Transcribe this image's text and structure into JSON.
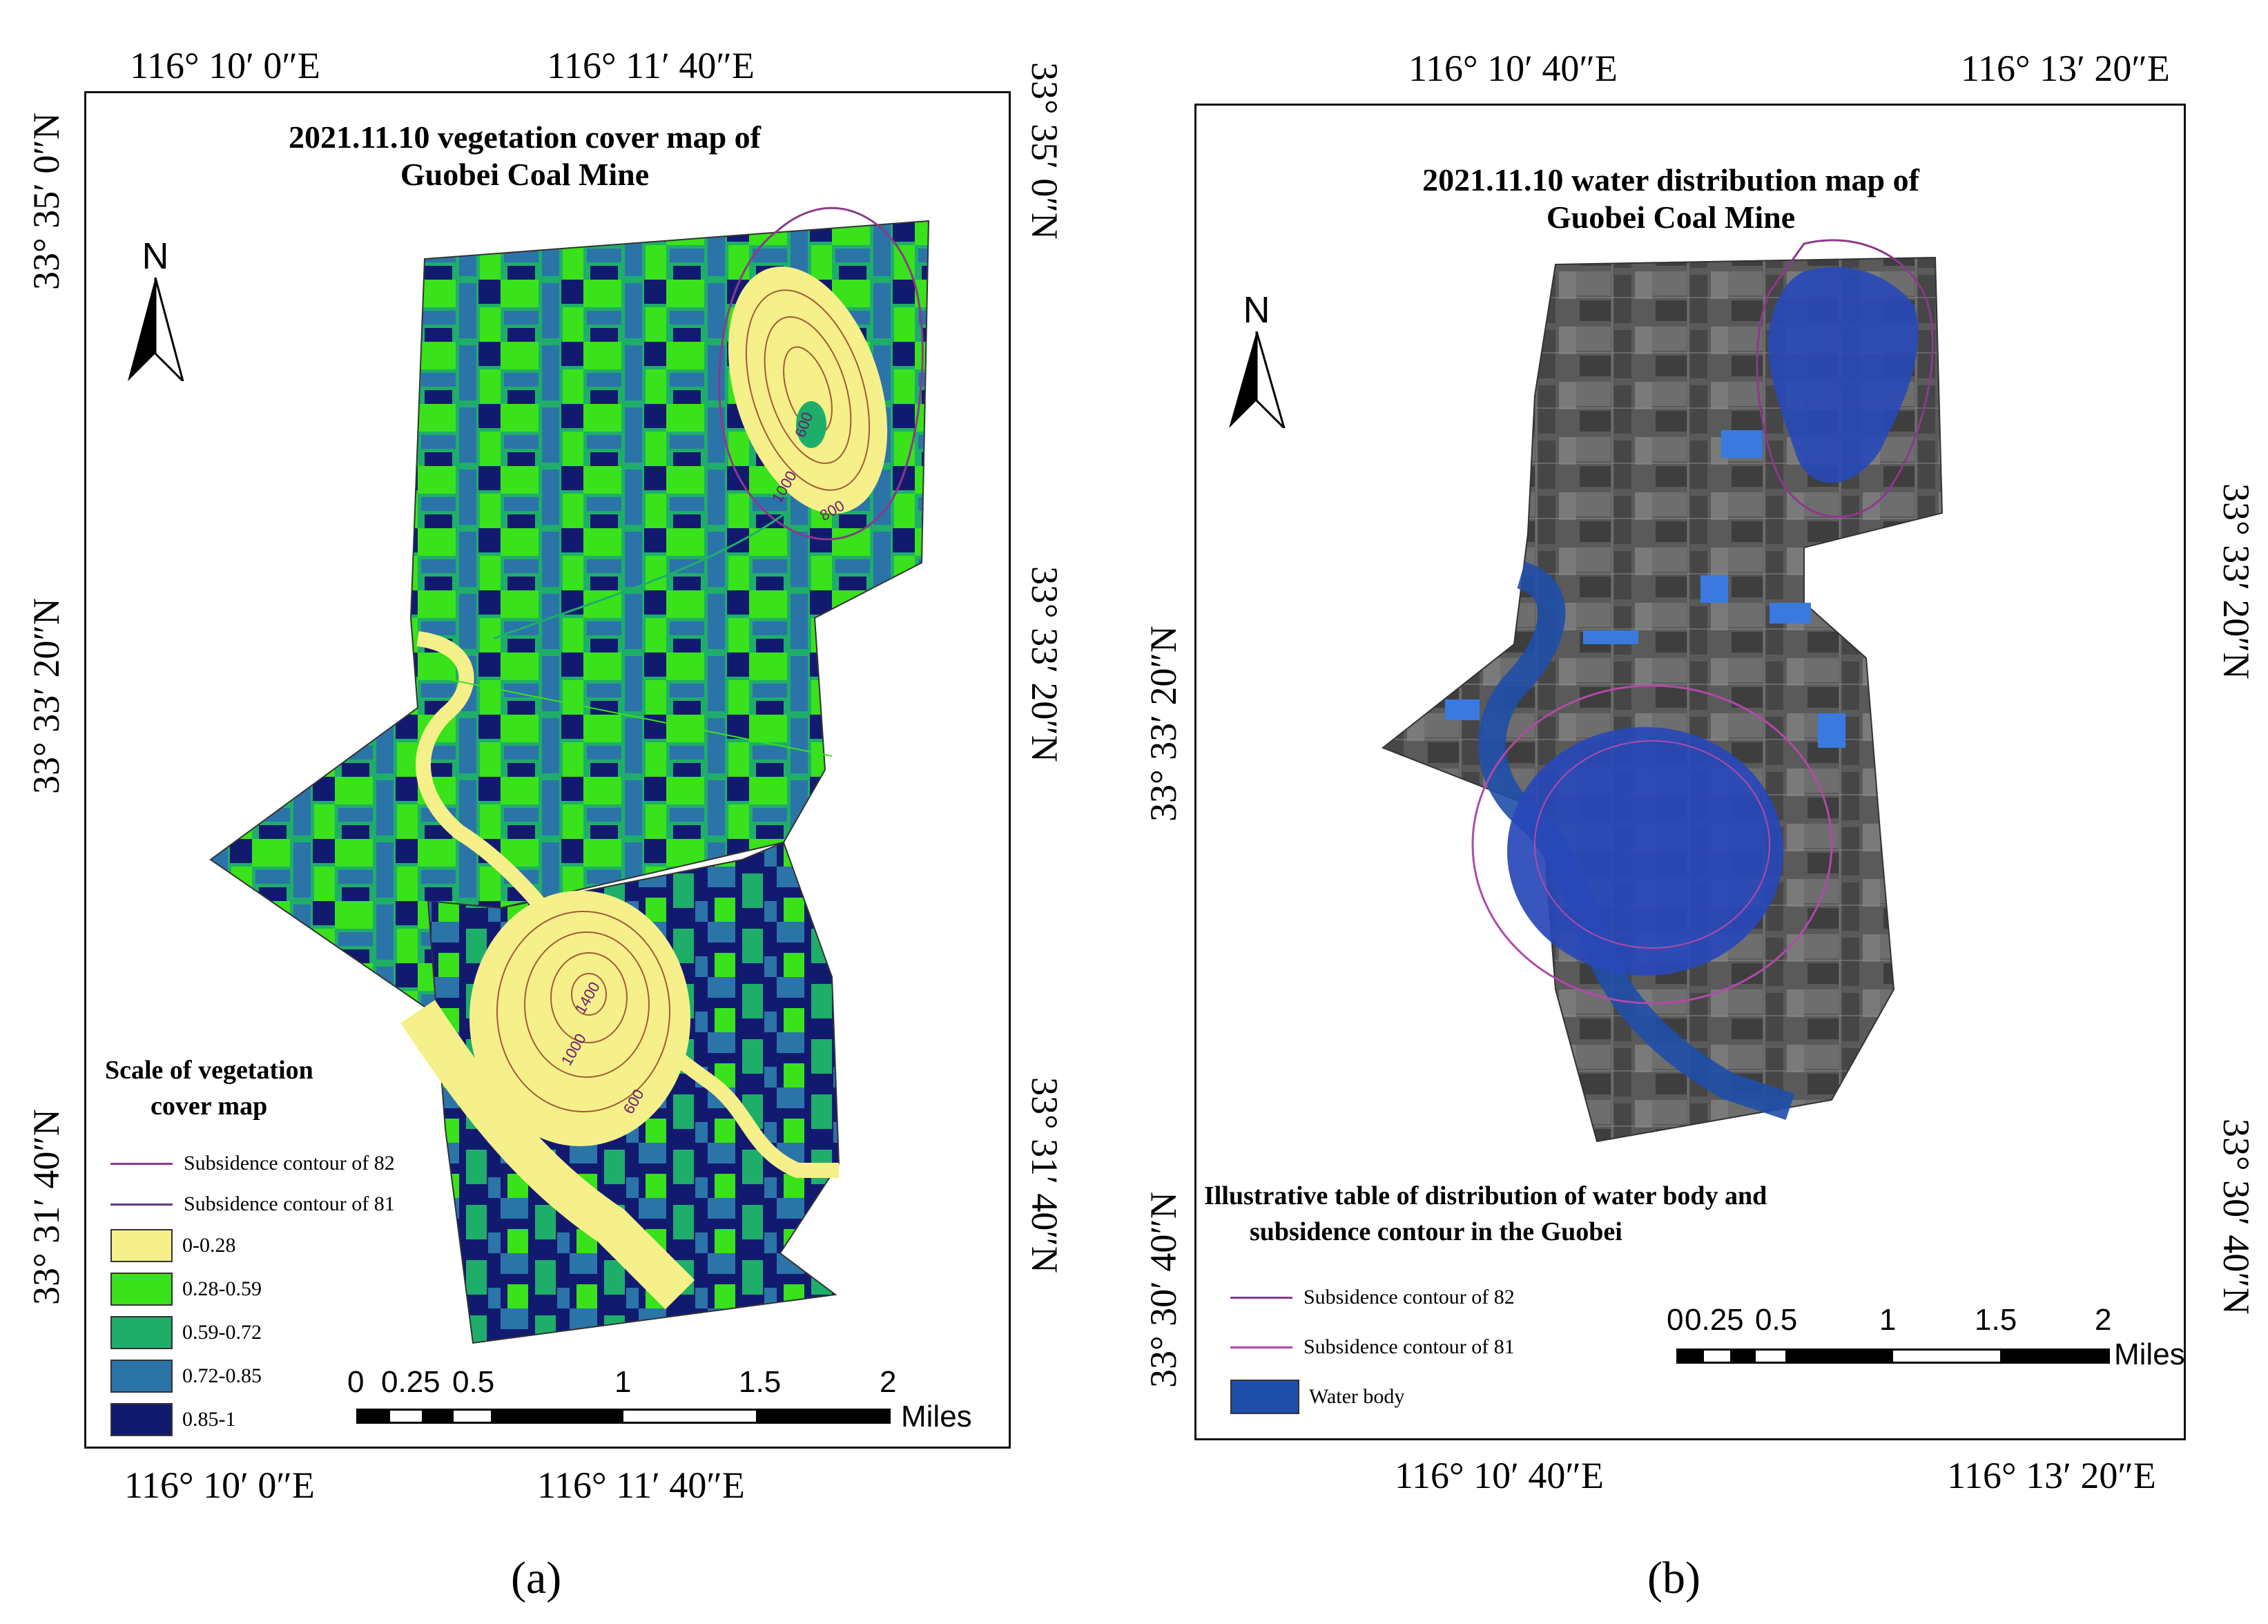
{
  "panel_a": {
    "caption": "(a)",
    "title_line1": "2021.11.10 vegetation cover map of",
    "title_line2": "Guobei Coal Mine",
    "north_label": "N",
    "top_ticks": [
      "116°  10′ 0″E",
      "116°  11′ 40″E"
    ],
    "bottom_ticks": [
      "116°  10′ 0″E",
      "116°  11′ 40″E"
    ],
    "left_ticks": [
      "33°  35′ 0″N",
      "33°  33′ 20″N",
      "33°  31′ 40″N"
    ],
    "right_ticks": [
      "33°  35′ 0″N",
      "33°  33′ 20″N",
      "33°  31′ 40″N"
    ],
    "contour_labels": [
      "600",
      "800",
      "1000",
      "1400",
      "1000",
      "600"
    ],
    "legend": {
      "title_line1": "Scale of vegetation",
      "title_line2": "cover map",
      "lines": [
        {
          "label": "Subsidence contour of 82",
          "color": "#8b3a8b"
        },
        {
          "label": "Subsidence contour of 81",
          "color": "#5a3a7a"
        }
      ],
      "classes": [
        {
          "label": "0-0.28",
          "color": "#f6f08a"
        },
        {
          "label": "0.28-0.59",
          "color": "#39e21a"
        },
        {
          "label": "0.59-0.72",
          "color": "#1fae6a"
        },
        {
          "label": "0.72-0.85",
          "color": "#2b74a8"
        },
        {
          "label": "0.85-1",
          "color": "#121a70"
        }
      ]
    },
    "scalebar": {
      "ticks": [
        "0",
        "0.25",
        "0.5",
        "1",
        "1.5",
        "2"
      ],
      "unit": "Miles"
    }
  },
  "panel_b": {
    "caption": "(b)",
    "title_line1": "2021.11.10 water distribution map of",
    "title_line2": "Guobei Coal Mine",
    "north_label": "N",
    "top_ticks": [
      "116°  10′ 40″E",
      "116°  13′ 20″E"
    ],
    "bottom_ticks": [
      "116°  10′ 40″E",
      "116°  13′ 20″E"
    ],
    "left_ticks": [
      "33°  33′ 20″N",
      "33°  30′ 40″N"
    ],
    "right_ticks": [
      "33°  33′ 20″N",
      "33°  30′ 40″N"
    ],
    "legend": {
      "title_line1": "Illustrative table of distribution of water body and",
      "title_line2": "subsidence contour in the Guobei",
      "lines": [
        {
          "label": "Subsidence contour of 82",
          "color": "#8b3a8b"
        },
        {
          "label": "Subsidence contour of 81",
          "color": "#b04aa8"
        }
      ],
      "classes": [
        {
          "label": "Water body",
          "color": "#1f4ea8"
        }
      ]
    },
    "scalebar": {
      "ticks": [
        "0",
        "0.25",
        "0.5",
        "1",
        "1.5",
        "2"
      ],
      "unit": "Miles"
    }
  }
}
